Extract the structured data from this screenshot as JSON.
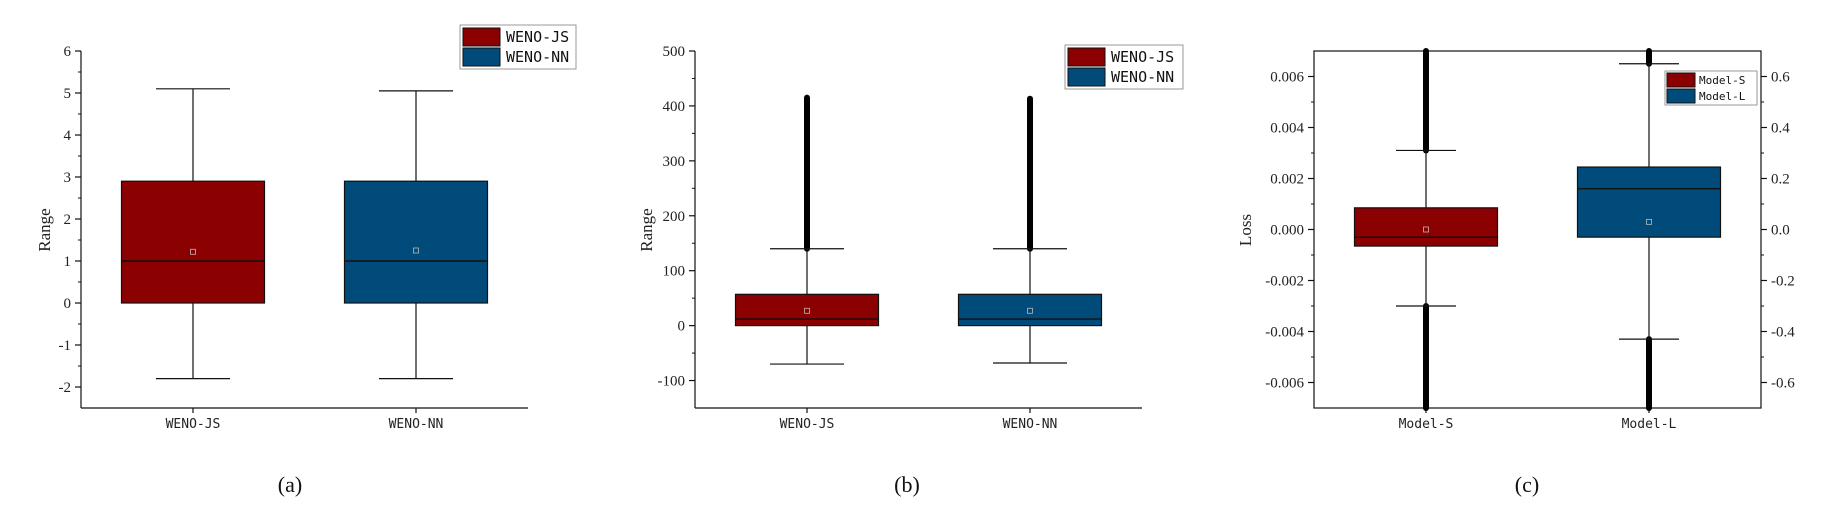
{
  "chart_data": [
    {
      "type": "box",
      "panel_label": "(a)",
      "ylabel": "Range",
      "ylim": [
        -2.5,
        6
      ],
      "yticks": [
        -2,
        -1,
        0,
        1,
        2,
        3,
        4,
        5,
        6
      ],
      "ytick_labels": [
        "-2",
        "-1",
        "0",
        "1",
        "2",
        "3",
        "4",
        "5",
        "6"
      ],
      "categories": [
        "WENO-JS",
        "WENO-NN"
      ],
      "legend": {
        "position": "top-right",
        "entries": [
          "WENO-JS",
          "WENO-NN"
        ]
      },
      "series": [
        {
          "name": "WENO-JS",
          "color": "#8B0000",
          "whisker_low": -1.8,
          "q1": 0.0,
          "median": 1.0,
          "q3": 2.9,
          "whisker_high": 5.1,
          "mean": 1.22
        },
        {
          "name": "WENO-NN",
          "color": "#004B7A",
          "whisker_low": -1.8,
          "q1": 0.0,
          "median": 1.0,
          "q3": 2.9,
          "whisker_high": 5.05,
          "mean": 1.25
        }
      ]
    },
    {
      "type": "box",
      "panel_label": "(b)",
      "ylabel": "Range",
      "ylim": [
        -150,
        500
      ],
      "yticks": [
        -100,
        0,
        100,
        200,
        300,
        400,
        500
      ],
      "ytick_labels": [
        "-100",
        "0",
        "100",
        "200",
        "300",
        "400",
        "500"
      ],
      "categories": [
        "WENO-JS",
        "WENO-NN"
      ],
      "legend": {
        "position": "top-right",
        "entries": [
          "WENO-JS",
          "WENO-NN"
        ]
      },
      "series": [
        {
          "name": "WENO-JS",
          "color": "#8B0000",
          "whisker_low": -70,
          "q1": 0,
          "median": 12,
          "q3": 57,
          "whisker_high": 140,
          "mean": 27,
          "outlier_range": [
            140,
            415
          ]
        },
        {
          "name": "WENO-NN",
          "color": "#004B7A",
          "whisker_low": -68,
          "q1": 0,
          "median": 12,
          "q3": 57,
          "whisker_high": 140,
          "mean": 27,
          "outlier_range": [
            140,
            413
          ]
        }
      ]
    },
    {
      "type": "box",
      "panel_label": "(c)",
      "ylabel": "Loss",
      "ylim": [
        -0.007,
        0.007
      ],
      "yticks": [
        -0.006,
        -0.004,
        -0.002,
        0.0,
        0.002,
        0.004,
        0.006
      ],
      "ytick_labels": [
        "-0.006",
        "-0.004",
        "-0.002",
        "0.000",
        "0.002",
        "0.004",
        "0.006"
      ],
      "y2lim": [
        -0.7,
        0.7
      ],
      "y2ticks": [
        -0.6,
        -0.4,
        -0.2,
        0.0,
        0.2,
        0.4,
        0.6
      ],
      "y2tick_labels": [
        "-0.6",
        "-0.4",
        "-0.2",
        "0.0",
        "0.2",
        "0.4",
        "0.6"
      ],
      "categories": [
        "Model-S",
        "Model-L"
      ],
      "legend": {
        "position": "top-right",
        "entries": [
          "Model-S",
          "Model-L"
        ]
      },
      "series": [
        {
          "name": "Model-S",
          "axis": "left",
          "color": "#8B0000",
          "whisker_low": -0.003,
          "q1": -0.00065,
          "median": -0.0003,
          "q3": 0.00085,
          "whisker_high": 0.0031,
          "mean": 0.0,
          "outlier_range": [
            [
              -0.007,
              -0.003
            ],
            [
              0.0031,
              0.007
            ]
          ]
        },
        {
          "name": "Model-L",
          "axis": "right",
          "color": "#004B7A",
          "whisker_low": -0.43,
          "q1": -0.03,
          "median": 0.16,
          "q3": 0.245,
          "whisker_high": 0.65,
          "mean": 0.03,
          "outlier_range": [
            [
              -0.7,
              -0.43
            ],
            [
              0.65,
              0.7
            ]
          ]
        }
      ]
    }
  ]
}
